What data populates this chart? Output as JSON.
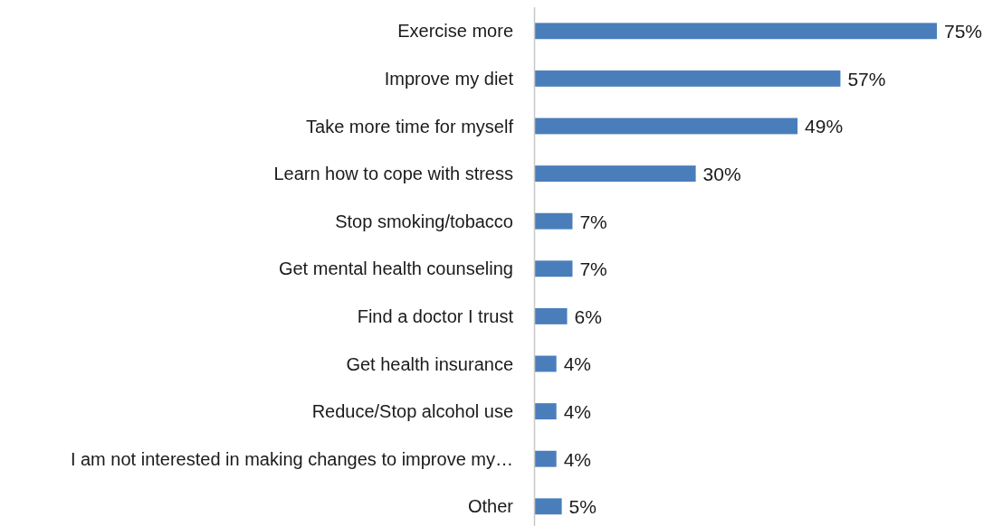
{
  "chart_data": {
    "type": "bar",
    "orientation": "horizontal",
    "categories": [
      "Exercise more",
      "Improve my diet",
      "Take more time for myself",
      "Learn how to cope with stress",
      "Stop smoking/tobacco",
      "Get mental health counseling",
      "Find a doctor I trust",
      "Get health insurance",
      "Reduce/Stop alcohol use",
      "I am not interested in making changes to improve my…",
      "Other"
    ],
    "values": [
      75,
      57,
      49,
      30,
      7,
      7,
      6,
      4,
      4,
      4,
      5
    ],
    "value_labels": [
      "75%",
      "57%",
      "49%",
      "30%",
      "7%",
      "7%",
      "6%",
      "4%",
      "4%",
      "4%",
      "5%"
    ],
    "color": "#4a7ebb"
  }
}
